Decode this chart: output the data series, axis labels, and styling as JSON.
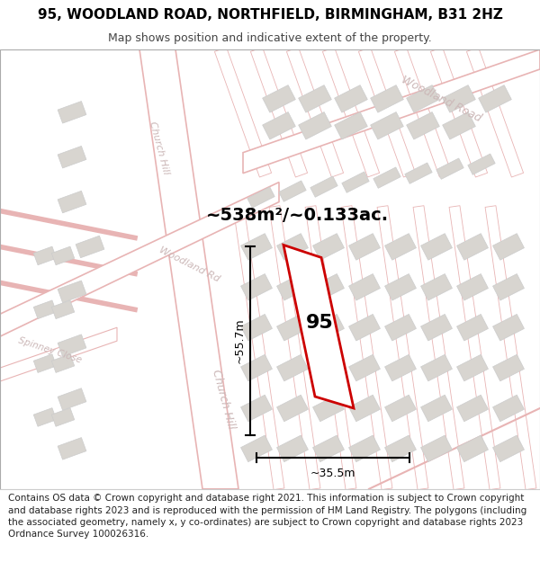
{
  "title": "95, WOODLAND ROAD, NORTHFIELD, BIRMINGHAM, B31 2HZ",
  "subtitle": "Map shows position and indicative extent of the property.",
  "footer": "Contains OS data © Crown copyright and database right 2021. This information is subject to Crown copyright and database rights 2023 and is reproduced with the permission of HM Land Registry. The polygons (including the associated geometry, namely x, y co-ordinates) are subject to Crown copyright and database rights 2023 Ordnance Survey 100026316.",
  "area_label": "~538m²/~0.133ac.",
  "property_number": "95",
  "dim_vertical": "~55.7m",
  "dim_horizontal": "~35.5m",
  "map_bg": "#f2f0ec",
  "street_line_color": "#e8b4b4",
  "street_fill_color": "#ffffff",
  "property_color": "#cc0000",
  "building_fill": "#d8d5d0",
  "building_edge": "#cccccc",
  "dim_color": "#333333",
  "title_fontsize": 11,
  "subtitle_fontsize": 9,
  "footer_fontsize": 7.5,
  "label_color": "#ccb8b8",
  "street_label_size": 9
}
